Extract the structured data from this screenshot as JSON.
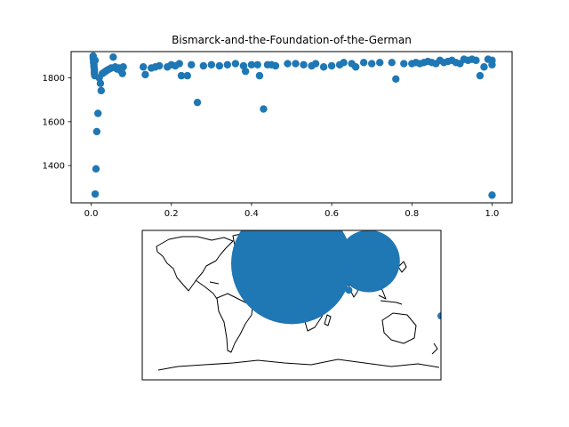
{
  "colors": {
    "marker": "#1f77b4",
    "axis": "#000000",
    "background": "#ffffff"
  },
  "chart_data": [
    {
      "type": "scatter",
      "title": "Bismarck-and-the-Foundation-of-the-German",
      "xlabel": "",
      "ylabel": "",
      "xlim": [
        -0.05,
        1.05
      ],
      "ylim": [
        1230,
        1920
      ],
      "x_ticks": [
        0.0,
        0.2,
        0.4,
        0.6,
        0.8,
        1.0
      ],
      "x_tick_labels": [
        "0.0",
        "0.2",
        "0.4",
        "0.6",
        "0.8",
        "1.0"
      ],
      "y_ticks": [
        1400,
        1600,
        1800
      ],
      "y_tick_labels": [
        "1400",
        "1600",
        "1800"
      ],
      "grid": false,
      "points": [
        [
          0.005,
          1900
        ],
        [
          0.005,
          1890
        ],
        [
          0.006,
          1880
        ],
        [
          0.006,
          1870
        ],
        [
          0.007,
          1860
        ],
        [
          0.007,
          1850
        ],
        [
          0.008,
          1840
        ],
        [
          0.008,
          1830
        ],
        [
          0.008,
          1820
        ],
        [
          0.009,
          1810
        ],
        [
          0.01,
          1880
        ],
        [
          0.01,
          1270
        ],
        [
          0.012,
          1385
        ],
        [
          0.014,
          1555
        ],
        [
          0.017,
          1638
        ],
        [
          0.02,
          1800
        ],
        [
          0.023,
          1775
        ],
        [
          0.025,
          1742
        ],
        [
          0.028,
          1820
        ],
        [
          0.032,
          1825
        ],
        [
          0.036,
          1830
        ],
        [
          0.04,
          1835
        ],
        [
          0.045,
          1840
        ],
        [
          0.05,
          1845
        ],
        [
          0.055,
          1895
        ],
        [
          0.06,
          1850
        ],
        [
          0.065,
          1840
        ],
        [
          0.07,
          1845
        ],
        [
          0.075,
          1830
        ],
        [
          0.078,
          1820
        ],
        [
          0.08,
          1850
        ],
        [
          0.13,
          1850
        ],
        [
          0.135,
          1815
        ],
        [
          0.15,
          1845
        ],
        [
          0.16,
          1850
        ],
        [
          0.17,
          1855
        ],
        [
          0.19,
          1850
        ],
        [
          0.2,
          1860
        ],
        [
          0.21,
          1855
        ],
        [
          0.22,
          1865
        ],
        [
          0.225,
          1810
        ],
        [
          0.24,
          1810
        ],
        [
          0.25,
          1860
        ],
        [
          0.265,
          1688
        ],
        [
          0.28,
          1855
        ],
        [
          0.3,
          1860
        ],
        [
          0.32,
          1855
        ],
        [
          0.34,
          1860
        ],
        [
          0.36,
          1865
        ],
        [
          0.38,
          1855
        ],
        [
          0.385,
          1830
        ],
        [
          0.4,
          1860
        ],
        [
          0.415,
          1860
        ],
        [
          0.42,
          1810
        ],
        [
          0.43,
          1658
        ],
        [
          0.44,
          1860
        ],
        [
          0.45,
          1860
        ],
        [
          0.46,
          1855
        ],
        [
          0.49,
          1865
        ],
        [
          0.51,
          1865
        ],
        [
          0.53,
          1860
        ],
        [
          0.55,
          1855
        ],
        [
          0.56,
          1865
        ],
        [
          0.58,
          1850
        ],
        [
          0.6,
          1855
        ],
        [
          0.62,
          1860
        ],
        [
          0.63,
          1870
        ],
        [
          0.65,
          1865
        ],
        [
          0.66,
          1850
        ],
        [
          0.68,
          1870
        ],
        [
          0.7,
          1865
        ],
        [
          0.72,
          1870
        ],
        [
          0.75,
          1870
        ],
        [
          0.76,
          1795
        ],
        [
          0.78,
          1865
        ],
        [
          0.8,
          1865
        ],
        [
          0.81,
          1870
        ],
        [
          0.82,
          1865
        ],
        [
          0.83,
          1870
        ],
        [
          0.84,
          1875
        ],
        [
          0.85,
          1870
        ],
        [
          0.86,
          1865
        ],
        [
          0.87,
          1880
        ],
        [
          0.88,
          1870
        ],
        [
          0.89,
          1875
        ],
        [
          0.9,
          1880
        ],
        [
          0.91,
          1870
        ],
        [
          0.92,
          1865
        ],
        [
          0.93,
          1885
        ],
        [
          0.94,
          1880
        ],
        [
          0.95,
          1885
        ],
        [
          0.96,
          1880
        ],
        [
          0.97,
          1810
        ],
        [
          0.98,
          1850
        ],
        [
          0.99,
          1885
        ],
        [
          1.0,
          1860
        ],
        [
          1.0,
          1880
        ],
        [
          1.0,
          1265
        ]
      ]
    },
    {
      "type": "map",
      "projection": "PlateCarree",
      "xlim": [
        -180,
        180
      ],
      "ylim": [
        -90,
        90
      ],
      "bubbles": [
        {
          "lon": 0,
          "lat": 50,
          "size": 68
        },
        {
          "lon": 93,
          "lat": 53,
          "size": 35
        },
        {
          "lon": 69,
          "lat": 18,
          "size": 4
        },
        {
          "lon": 180,
          "lat": -13,
          "size": 4
        }
      ]
    }
  ]
}
